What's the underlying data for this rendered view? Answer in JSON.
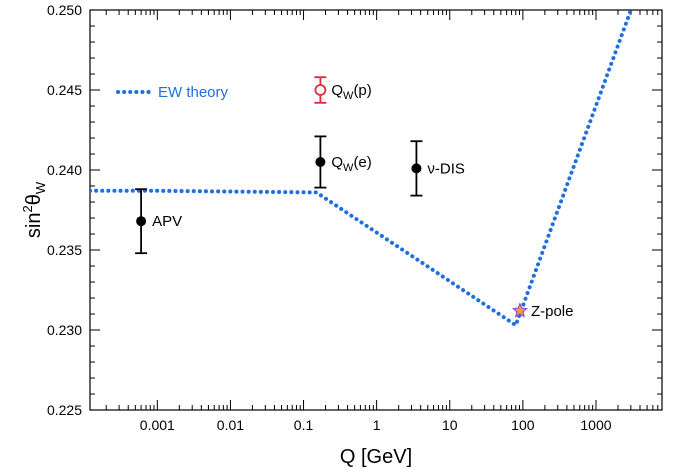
{
  "chart_data": {
    "type": "scatter",
    "xlabel": "Q [GeV]",
    "ylabel_main": "sin",
    "ylabel_sup": "2",
    "ylabel_theta": "θ",
    "ylabel_sub": "W",
    "xscale": "log",
    "xlim": [
      0.00012,
      8000
    ],
    "ylim": [
      0.225,
      0.25
    ],
    "x_ticks": [
      0.001,
      0.01,
      0.1,
      1,
      10,
      100,
      1000
    ],
    "x_tick_labels": [
      "0.001",
      "0.01",
      "0.1",
      "1",
      "10",
      "100",
      "1000"
    ],
    "y_ticks": [
      0.225,
      0.23,
      0.235,
      0.24,
      0.245,
      0.25
    ],
    "y_tick_labels": [
      "0.225",
      "0.230",
      "0.235",
      "0.240",
      "0.245",
      "0.250"
    ],
    "grid": false,
    "legend": {
      "position": "top-left",
      "entries": [
        {
          "label": "EW theory",
          "color": "#1f6fe0",
          "style": "dotted"
        }
      ]
    },
    "series": [
      {
        "name": "EW theory",
        "kind": "dotted-line",
        "color": "#1f6fe0",
        "points": [
          [
            0.00012,
            0.2387
          ],
          [
            0.001,
            0.2387
          ],
          [
            0.15,
            0.2386
          ],
          [
            80,
            0.2303
          ],
          [
            3000,
            0.25
          ]
        ]
      }
    ],
    "points": [
      {
        "label": "APV",
        "x": 0.0006,
        "y": 0.2368,
        "err": 0.002,
        "style": "filled",
        "color": "#000000",
        "label_side": "right"
      },
      {
        "label_main": "Q",
        "label_sub": "W",
        "label_tail": "(e)",
        "x": 0.17,
        "y": 0.2405,
        "err": 0.0016,
        "style": "filled",
        "color": "#000000",
        "label_side": "right"
      },
      {
        "label_main": "Q",
        "label_sub": "W",
        "label_tail": "(p)",
        "x": 0.17,
        "y": 0.245,
        "err": 0.0008,
        "style": "open",
        "color": "#e0283c",
        "label_side": "right"
      },
      {
        "label": "ν-DIS",
        "x": 3.5,
        "y": 0.2401,
        "err": 0.0017,
        "style": "filled",
        "color": "#000000",
        "label_side": "right"
      },
      {
        "label": "Z-pole",
        "x": 91.2,
        "y": 0.2312,
        "err": 0,
        "style": "star",
        "color": "#e8a040",
        "stroke": "#9b4fc0",
        "label_side": "right"
      }
    ]
  }
}
